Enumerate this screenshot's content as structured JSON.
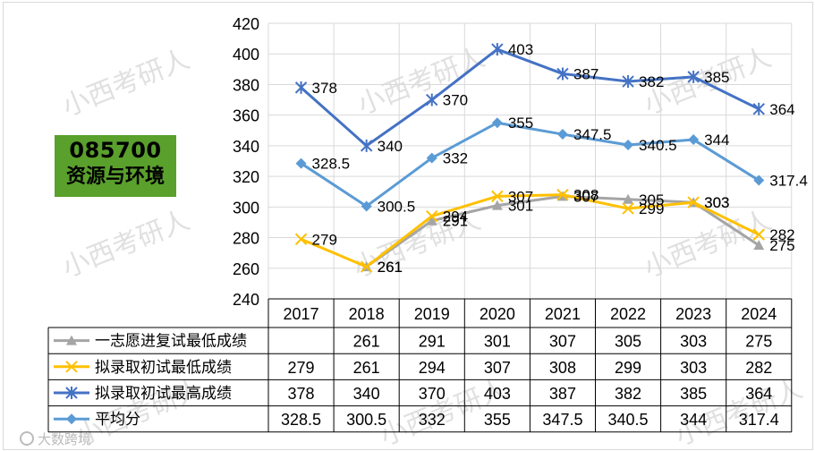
{
  "badge": {
    "code": "085700",
    "name": "资源与环境"
  },
  "watermark": "小西考研人",
  "chart_data": {
    "type": "line",
    "categories": [
      "2017",
      "2018",
      "2019",
      "2020",
      "2021",
      "2022",
      "2023",
      "2024"
    ],
    "ylim": [
      240,
      420
    ],
    "yticks": [
      240,
      260,
      280,
      300,
      320,
      340,
      360,
      380,
      400,
      420
    ],
    "grid": true,
    "series": [
      {
        "name": "一志愿进复试最低成绩",
        "color": "#a5a5a5",
        "marker": "triangle",
        "values": [
          null,
          261,
          291,
          301,
          307,
          305,
          303,
          275
        ]
      },
      {
        "name": "拟录取初试最低成绩",
        "color": "#ffc000",
        "marker": "x",
        "values": [
          279,
          261,
          294,
          307,
          308,
          299,
          303,
          282
        ]
      },
      {
        "name": "拟录取初试最高成绩",
        "color": "#4472c4",
        "marker": "star",
        "values": [
          378,
          340,
          370,
          403,
          387,
          382,
          385,
          364
        ]
      },
      {
        "name": "平均分",
        "color": "#5b9bd5",
        "marker": "diamond",
        "values": [
          328.5,
          300.5,
          332,
          355,
          347.5,
          340.5,
          344,
          317.4
        ]
      }
    ],
    "table": [
      [
        "",
        "261",
        "291",
        "301",
        "307",
        "305",
        "303",
        "275"
      ],
      [
        "279",
        "261",
        "294",
        "307",
        "308",
        "299",
        "303",
        "282"
      ],
      [
        "378",
        "340",
        "370",
        "403",
        "387",
        "382",
        "385",
        "364"
      ],
      [
        "328.5",
        "300.5",
        "332",
        "355",
        "347.5",
        "340.5",
        "344",
        "317.4"
      ]
    ]
  },
  "footer_logo": "大数跨境"
}
